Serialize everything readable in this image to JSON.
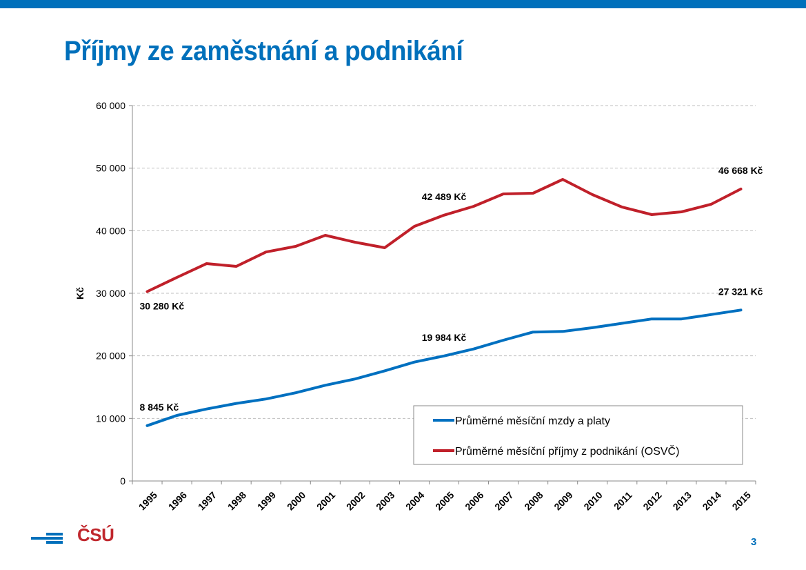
{
  "slide": {
    "title": "Příjmy ze zaměstnání a podnikání",
    "page_number": "3",
    "logo_text": "ČSÚ",
    "brand_blue": "#0070bb",
    "brand_red": "#c0272d"
  },
  "chart_data": {
    "type": "line",
    "title": "",
    "xlabel": "",
    "ylabel": "Kč",
    "ylim": [
      0,
      60000
    ],
    "yticks": [
      0,
      10000,
      20000,
      30000,
      40000,
      50000,
      60000
    ],
    "ytick_labels": [
      "0",
      "10 000",
      "20 000",
      "30 000",
      "40 000",
      "50 000",
      "60 000"
    ],
    "grid": true,
    "legend_position": "bottom-right",
    "categories": [
      "1995",
      "1996",
      "1997",
      "1998",
      "1999",
      "2000",
      "2001",
      "2002",
      "2003",
      "2004",
      "2005",
      "2006",
      "2007",
      "2008",
      "2009",
      "2010",
      "2011",
      "2012",
      "2013",
      "2014",
      "2015"
    ],
    "series": [
      {
        "name": "Průměrné měsíční mzdy a platy",
        "color": "#0070c0",
        "values": [
          8845,
          10480,
          11500,
          12400,
          13100,
          14100,
          15300,
          16300,
          17600,
          19000,
          19984,
          21100,
          22500,
          23800,
          23900,
          24500,
          25200,
          25900,
          25900,
          26600,
          27321
        ]
      },
      {
        "name": "Průměrné měsíční příjmy z podnikání (OSVČ)",
        "color": "#c0202a",
        "values": [
          30280,
          32540,
          34740,
          34300,
          36600,
          37500,
          39260,
          38160,
          37280,
          40700,
          42489,
          43900,
          45880,
          45990,
          48200,
          45770,
          43780,
          42570,
          43010,
          44230,
          46668
        ]
      }
    ],
    "annotations": [
      {
        "series": 0,
        "category": "1995",
        "text": "8 845 Kč",
        "placement": "above"
      },
      {
        "series": 0,
        "category": "2005",
        "text": "19 984 Kč",
        "placement": "above"
      },
      {
        "series": 0,
        "category": "2015",
        "text": "27 321 Kč",
        "placement": "above"
      },
      {
        "series": 1,
        "category": "1995",
        "text": "30 280 Kč",
        "placement": "below"
      },
      {
        "series": 1,
        "category": "2005",
        "text": "42 489 Kč",
        "placement": "above"
      },
      {
        "series": 1,
        "category": "2015",
        "text": "46 668 Kč",
        "placement": "above"
      }
    ]
  }
}
